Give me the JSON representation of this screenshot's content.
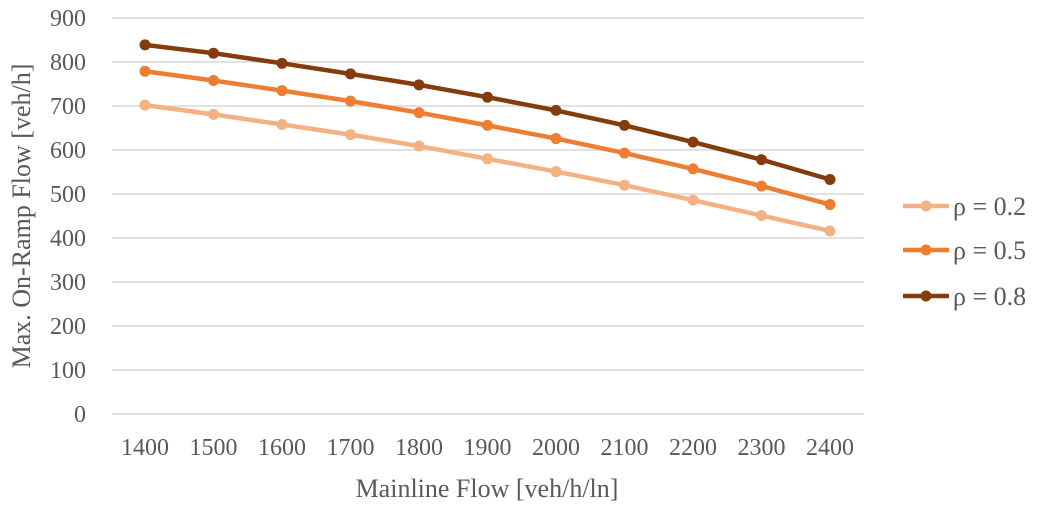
{
  "chart_data": {
    "type": "line",
    "title": "",
    "xlabel": "Mainline Flow [veh/h/ln]",
    "ylabel": "Max. On-Ramp Flow [veh/h]",
    "x": [
      1400,
      1500,
      1600,
      1700,
      1800,
      1900,
      2000,
      2100,
      2200,
      2300,
      2400
    ],
    "xticks": [
      "1400",
      "1500",
      "1600",
      "1700",
      "1800",
      "1900",
      "2000",
      "2100",
      "2200",
      "2300",
      "2400"
    ],
    "yticks": [
      "0",
      "100",
      "200",
      "300",
      "400",
      "500",
      "600",
      "700",
      "800",
      "900"
    ],
    "ylim": [
      0,
      900
    ],
    "grid": "horizontal",
    "legend_position": "right",
    "series": [
      {
        "name": "ρ = 0.2",
        "color": "#f4b183",
        "values": [
          702,
          681,
          658,
          635,
          609,
          580,
          551,
          520,
          486,
          451,
          416
        ]
      },
      {
        "name": "ρ = 0.5",
        "color": "#ed7d31",
        "values": [
          779,
          758,
          735,
          711,
          685,
          656,
          626,
          593,
          557,
          518,
          476
        ]
      },
      {
        "name": "ρ = 0.8",
        "color": "#843c0c",
        "values": [
          839,
          820,
          797,
          773,
          748,
          720,
          690,
          656,
          618,
          578,
          533
        ]
      }
    ]
  }
}
